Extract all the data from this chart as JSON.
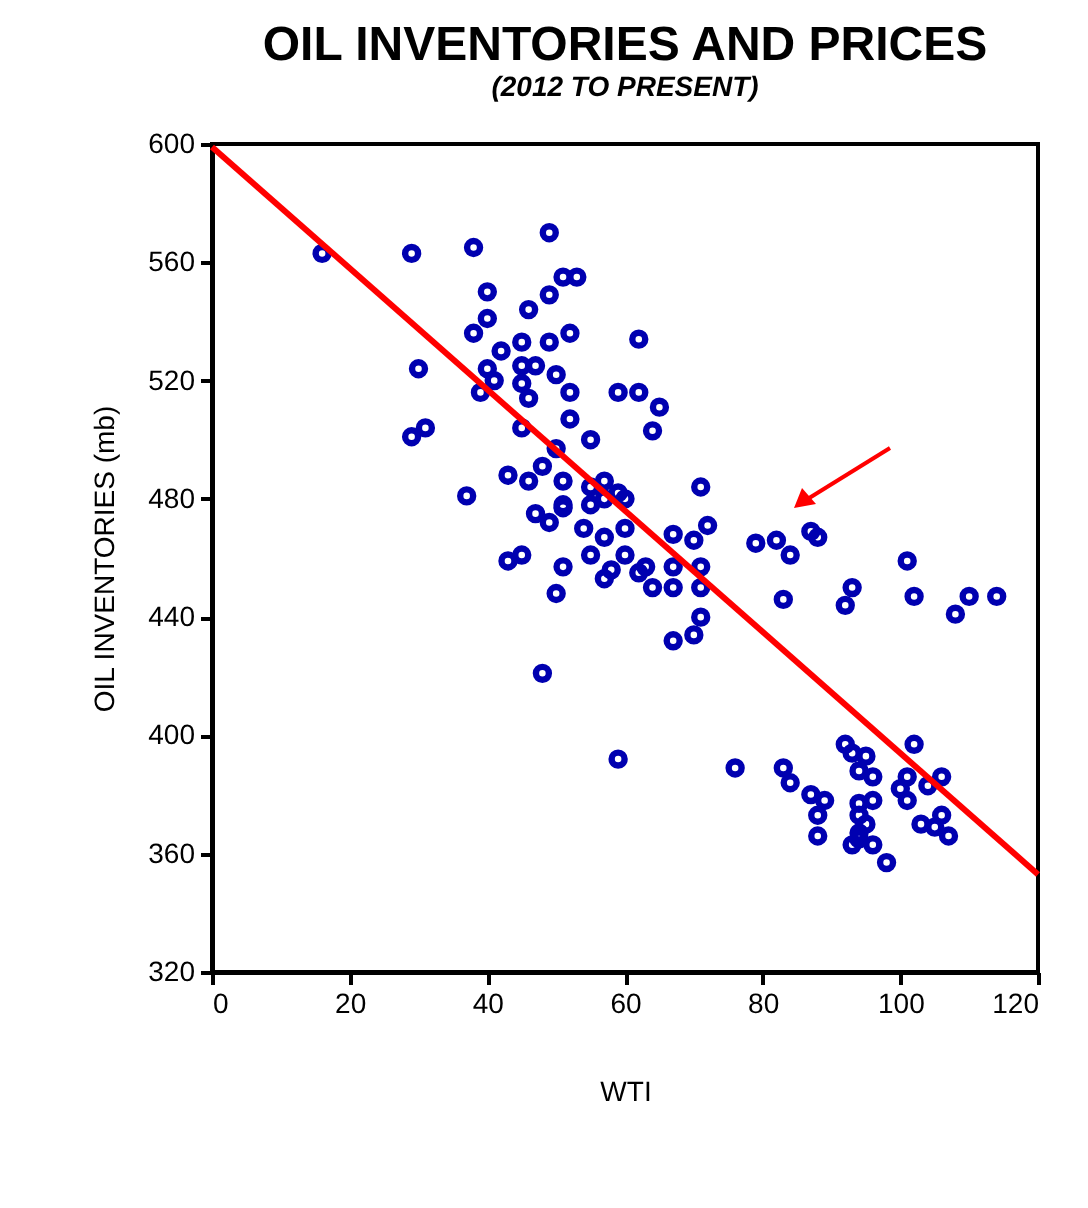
{
  "chart_data": {
    "type": "scatter",
    "title": "OIL INVENTORIES AND PRICES",
    "subtitle": "(2012 TO PRESENT)",
    "xlabel": "WTI",
    "ylabel": "OIL INVENTORIES (mb)",
    "xlim": [
      0,
      120
    ],
    "xticks": [
      0,
      20,
      40,
      60,
      80,
      100,
      120
    ],
    "ylim": [
      320,
      600
    ],
    "yticks": [
      320,
      360,
      400,
      440,
      480,
      520,
      560,
      600
    ],
    "grid": false,
    "legend": false,
    "series": [
      {
        "color": "#0000b0",
        "marker": "circle",
        "x": [
          16,
          29,
          38,
          49,
          51,
          53,
          40,
          49,
          40,
          46,
          38,
          52,
          62,
          49,
          45,
          42,
          30,
          40,
          41,
          45,
          47,
          50,
          45,
          39,
          46,
          52,
          59,
          62,
          65,
          52,
          29,
          31,
          45,
          55,
          64,
          50,
          48,
          43,
          46,
          51,
          37,
          55,
          57,
          59,
          60,
          47,
          49,
          51,
          51,
          54,
          55,
          57,
          60,
          57,
          67,
          45,
          43,
          55,
          60,
          51,
          57,
          58,
          62,
          63,
          64,
          50,
          67,
          67,
          67,
          48,
          59,
          71,
          72,
          70,
          71,
          71,
          71,
          70,
          79,
          82,
          84,
          87,
          88,
          83,
          92,
          93,
          101,
          102,
          108,
          110,
          114,
          76,
          83,
          84,
          87,
          89,
          88,
          88,
          92,
          93,
          95,
          94,
          96,
          102,
          101,
          100,
          104,
          106,
          101,
          94,
          96,
          94,
          95,
          94,
          94,
          93,
          96,
          98,
          103,
          105,
          106,
          107
        ],
        "values": [
          563,
          563,
          565,
          570,
          555,
          555,
          550,
          549,
          541,
          544,
          536,
          536,
          534,
          533,
          533,
          530,
          524,
          524,
          520,
          525,
          525,
          522,
          519,
          516,
          514,
          516,
          516,
          516,
          511,
          507,
          501,
          504,
          504,
          500,
          503,
          497,
          491,
          488,
          486,
          486,
          481,
          484,
          486,
          482,
          480,
          475,
          472,
          477,
          478,
          470,
          478,
          480,
          470,
          467,
          468,
          461,
          459,
          461,
          461,
          457,
          453,
          456,
          455,
          457,
          450,
          448,
          457,
          450,
          432,
          421,
          392,
          484,
          471,
          466,
          457,
          450,
          440,
          434,
          465,
          466,
          461,
          469,
          467,
          446,
          444,
          450,
          459,
          447,
          441,
          447,
          447,
          389,
          389,
          384,
          380,
          378,
          373,
          366,
          397,
          394,
          393,
          388,
          386,
          397,
          386,
          382,
          383,
          386,
          378,
          377,
          378,
          373,
          370,
          367,
          365,
          363,
          363,
          357,
          370,
          369,
          373,
          366
        ]
      },
      {
        "type": "line",
        "marker": "none",
        "color": "#ff0000",
        "x": [
          0,
          120
        ],
        "values": [
          599,
          353
        ]
      }
    ]
  }
}
